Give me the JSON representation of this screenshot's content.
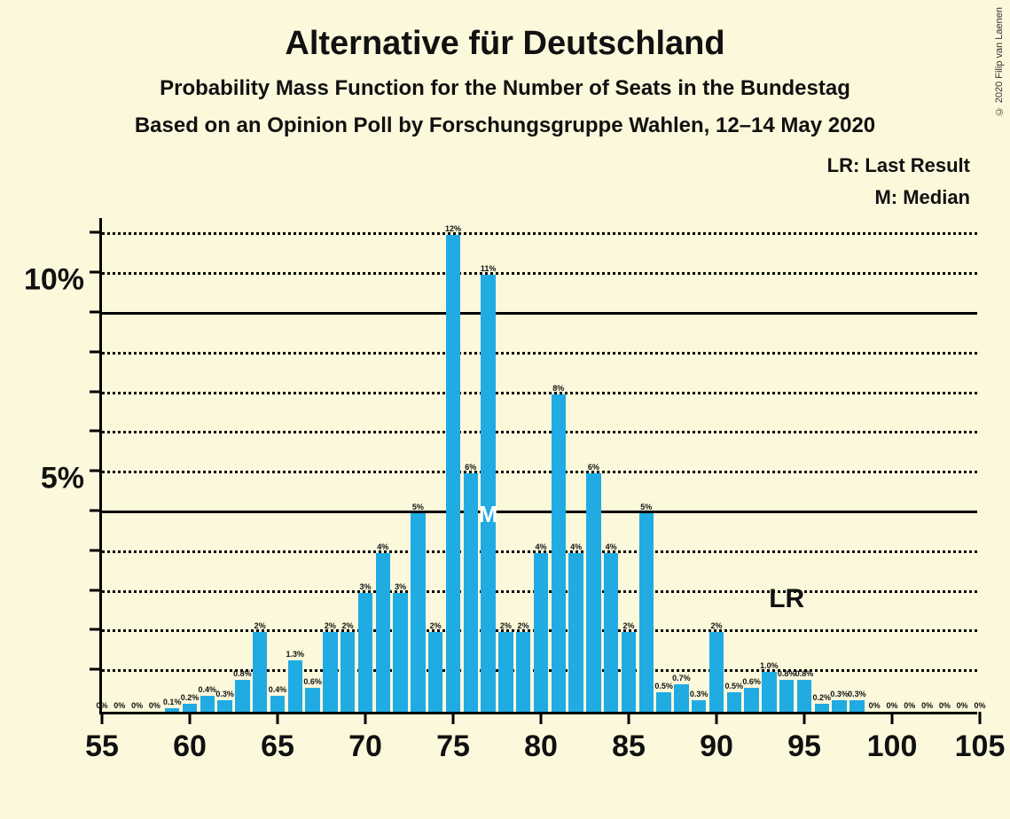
{
  "title": "Alternative für Deutschland",
  "subtitle1": "Probability Mass Function for the Number of Seats in the Bundestag",
  "subtitle2": "Based on an Opinion Poll by Forschungsgruppe Wahlen, 12–14 May 2020",
  "legend": {
    "lr": "LR: Last Result",
    "m": "M: Median"
  },
  "copyright": "© 2020 Filip van Laenen",
  "chart": {
    "type": "bar",
    "bar_color": "#21abe3",
    "background_color": "#fcf8db",
    "axis_color": "#000000",
    "bar_width_ratio": 0.82,
    "x_min": 55,
    "x_max": 105,
    "y_min": 0,
    "y_max": 12.5,
    "y_major_ticks": [
      5,
      10
    ],
    "y_minor_step": 1,
    "x_tick_step": 5,
    "median_seat": 77,
    "lr_seat": 94,
    "lr_text": "LR",
    "data": [
      {
        "seat": 55,
        "pct": 0,
        "label": "0%"
      },
      {
        "seat": 56,
        "pct": 0,
        "label": "0%"
      },
      {
        "seat": 57,
        "pct": 0,
        "label": "0%"
      },
      {
        "seat": 58,
        "pct": 0,
        "label": "0%"
      },
      {
        "seat": 59,
        "pct": 0.1,
        "label": "0.1%"
      },
      {
        "seat": 60,
        "pct": 0.2,
        "label": "0.2%"
      },
      {
        "seat": 61,
        "pct": 0.4,
        "label": "0.4%"
      },
      {
        "seat": 62,
        "pct": 0.3,
        "label": "0.3%"
      },
      {
        "seat": 63,
        "pct": 0.8,
        "label": "0.8%"
      },
      {
        "seat": 64,
        "pct": 2,
        "label": "2%"
      },
      {
        "seat": 65,
        "pct": 0.4,
        "label": "0.4%"
      },
      {
        "seat": 66,
        "pct": 1.3,
        "label": "1.3%"
      },
      {
        "seat": 67,
        "pct": 0.6,
        "label": "0.6%"
      },
      {
        "seat": 68,
        "pct": 2,
        "label": "2%"
      },
      {
        "seat": 69,
        "pct": 2,
        "label": "2%"
      },
      {
        "seat": 70,
        "pct": 3,
        "label": "3%"
      },
      {
        "seat": 71,
        "pct": 4,
        "label": "4%"
      },
      {
        "seat": 72,
        "pct": 3,
        "label": "3%"
      },
      {
        "seat": 73,
        "pct": 5,
        "label": "5%"
      },
      {
        "seat": 74,
        "pct": 2,
        "label": "2%"
      },
      {
        "seat": 75,
        "pct": 12,
        "label": "12%"
      },
      {
        "seat": 76,
        "pct": 6,
        "label": "6%"
      },
      {
        "seat": 77,
        "pct": 11,
        "label": "11%"
      },
      {
        "seat": 78,
        "pct": 2,
        "label": "2%"
      },
      {
        "seat": 79,
        "pct": 2,
        "label": "2%"
      },
      {
        "seat": 80,
        "pct": 4,
        "label": "4%"
      },
      {
        "seat": 81,
        "pct": 8,
        "label": "8%"
      },
      {
        "seat": 82,
        "pct": 4,
        "label": "4%"
      },
      {
        "seat": 83,
        "pct": 6,
        "label": "6%"
      },
      {
        "seat": 84,
        "pct": 4,
        "label": "4%"
      },
      {
        "seat": 85,
        "pct": 2,
        "label": "2%"
      },
      {
        "seat": 86,
        "pct": 5,
        "label": "5%"
      },
      {
        "seat": 87,
        "pct": 0.5,
        "label": "0.5%"
      },
      {
        "seat": 88,
        "pct": 0.7,
        "label": "0.7%"
      },
      {
        "seat": 89,
        "pct": 0.3,
        "label": "0.3%"
      },
      {
        "seat": 90,
        "pct": 2,
        "label": "2%"
      },
      {
        "seat": 91,
        "pct": 0.5,
        "label": "0.5%"
      },
      {
        "seat": 92,
        "pct": 0.6,
        "label": "0.6%"
      },
      {
        "seat": 93,
        "pct": 1.0,
        "label": "1.0%"
      },
      {
        "seat": 94,
        "pct": 0.8,
        "label": "0.8%"
      },
      {
        "seat": 95,
        "pct": 0.8,
        "label": "0.8%"
      },
      {
        "seat": 96,
        "pct": 0.2,
        "label": "0.2%"
      },
      {
        "seat": 97,
        "pct": 0.3,
        "label": "0.3%"
      },
      {
        "seat": 98,
        "pct": 0.3,
        "label": "0.3%"
      },
      {
        "seat": 99,
        "pct": 0,
        "label": "0%"
      },
      {
        "seat": 100,
        "pct": 0,
        "label": "0%"
      },
      {
        "seat": 101,
        "pct": 0,
        "label": "0%"
      },
      {
        "seat": 102,
        "pct": 0,
        "label": "0%"
      },
      {
        "seat": 103,
        "pct": 0,
        "label": "0%"
      },
      {
        "seat": 104,
        "pct": 0,
        "label": "0%"
      },
      {
        "seat": 105,
        "pct": 0,
        "label": "0%"
      }
    ]
  }
}
